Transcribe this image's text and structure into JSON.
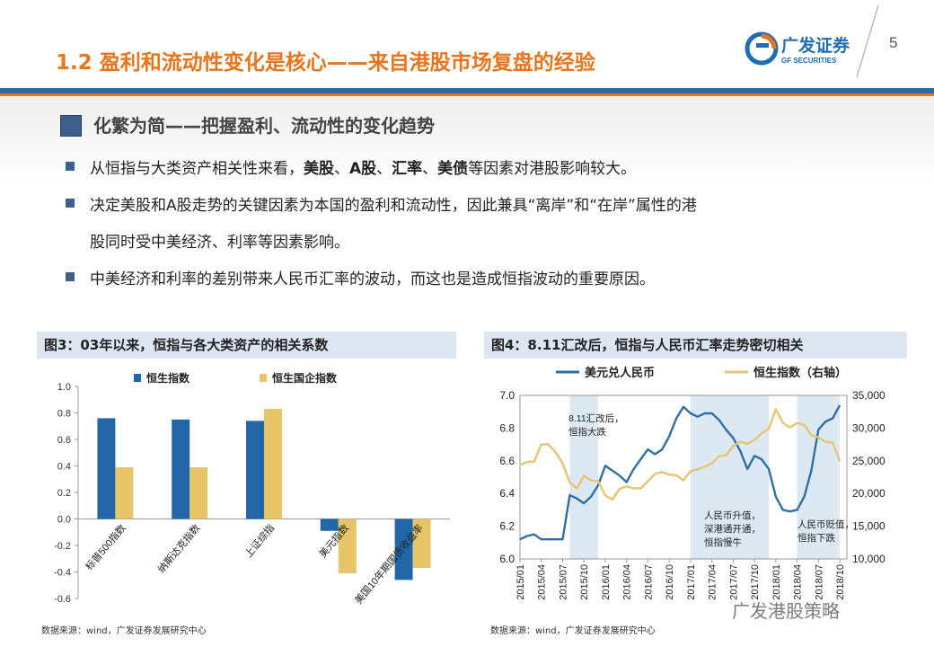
{
  "header": {
    "title": "1.2 盈利和流动性变化是核心——来自港股市场复盘的经验",
    "logo_cn": "广发证券",
    "logo_en": "GF SECURITIES",
    "page_number": "5",
    "colors": {
      "accent": "#e8741c",
      "blue": "#2e6da4"
    }
  },
  "section": {
    "title": "化繁为简——把握盈利、流动性的变化趋势"
  },
  "bullets": [
    {
      "parts": [
        {
          "t": "从恒指与大类资产相关性来看，",
          "b": false
        },
        {
          "t": "美股",
          "b": true
        },
        {
          "t": "、",
          "b": false
        },
        {
          "t": "A股",
          "b": true
        },
        {
          "t": "、",
          "b": false
        },
        {
          "t": "汇率",
          "b": true
        },
        {
          "t": "、",
          "b": false
        },
        {
          "t": "美债",
          "b": true
        },
        {
          "t": "等因素对港股影响较大。",
          "b": false
        }
      ]
    },
    {
      "line1": "决定美股和A股走势的关键因素为本国的盈利和流动性，因此兼具“离岸”和“在岸”属性的港",
      "line2": "股同时受中美经济、利率等因素影响。"
    },
    {
      "text": "中美经济和利率的差别带来人民币汇率的波动，而这也是造成恒指波动的重要原因。"
    }
  ],
  "fig3": {
    "title": "图3：03年以来，恒指与各大类资产的相关系数",
    "source": "数据来源：wind，广发证券发展研究中心"
  },
  "fig4": {
    "title": "图4：8.11汇改后，恒指与人民币汇率走势密切相关",
    "source": "数据来源：wind，广发证券发展研究中心",
    "annotations": [
      "8.11汇改后，",
      "恒指大跌",
      "人民币升值，",
      "深港通开通，",
      "恒指慢牛",
      "人民币贬值，",
      "恒指下跌"
    ]
  },
  "watermark": {
    "text": "广发港股策略"
  },
  "chart_data": [
    {
      "type": "bar",
      "title": "图3：03年以来，恒指与各大类资产的相关系数",
      "categories": [
        "标普500指数",
        "纳斯达克指数",
        "上证综指",
        "美元指数",
        "美国10年期国债收益率"
      ],
      "series": [
        {
          "name": "恒生指数",
          "color": "#2366a8",
          "values": [
            0.76,
            0.75,
            0.74,
            -0.09,
            -0.46
          ]
        },
        {
          "name": "恒生国企指数",
          "color": "#e8c468",
          "values": [
            0.39,
            0.39,
            0.83,
            -0.41,
            -0.37
          ]
        }
      ],
      "ylim": [
        -0.6,
        1.0
      ],
      "yticks": [
        "1.0",
        "0.8",
        "0.6",
        "0.4",
        "0.2",
        "0.0",
        "-0.2",
        "-0.4",
        "-0.6"
      ],
      "legend": "top",
      "grid": false
    },
    {
      "type": "line",
      "title": "图4：8.11汇改后，恒指与人民币汇率走势密切相关",
      "x_ticks": [
        "2015/01",
        "2015/04",
        "2015/07",
        "2015/10",
        "2016/01",
        "2016/04",
        "2016/07",
        "2016/10",
        "2017/01",
        "2017/04",
        "2017/07",
        "2017/10",
        "2018/01",
        "2018/04",
        "2018/07",
        "2018/10"
      ],
      "y_left": {
        "lim": [
          6.0,
          7.0
        ],
        "ticks": [
          "7.0",
          "6.8",
          "6.6",
          "6.4",
          "6.2",
          "6.0"
        ]
      },
      "y_right": {
        "lim": [
          10000,
          35000
        ],
        "ticks": [
          "35,000",
          "30,000",
          "25,000",
          "20,000",
          "15,000",
          "10,000"
        ]
      },
      "legend": "top",
      "series": [
        {
          "name": "美元兑人民币",
          "axis": "left",
          "color": "#2f6fa6",
          "points": [
            [
              "2015/01",
              6.12
            ],
            [
              "2015/02",
              6.14
            ],
            [
              "2015/03",
              6.15
            ],
            [
              "2015/04",
              6.12
            ],
            [
              "2015/05",
              6.12
            ],
            [
              "2015/06",
              6.12
            ],
            [
              "2015/07",
              6.12
            ],
            [
              "2015/08",
              6.39
            ],
            [
              "2015/09",
              6.37
            ],
            [
              "2015/10",
              6.34
            ],
            [
              "2015/11",
              6.38
            ],
            [
              "2015/12",
              6.45
            ],
            [
              "2016/01",
              6.57
            ],
            [
              "2016/02",
              6.54
            ],
            [
              "2016/03",
              6.51
            ],
            [
              "2016/04",
              6.47
            ],
            [
              "2016/05",
              6.55
            ],
            [
              "2016/06",
              6.61
            ],
            [
              "2016/07",
              6.67
            ],
            [
              "2016/08",
              6.64
            ],
            [
              "2016/09",
              6.67
            ],
            [
              "2016/10",
              6.75
            ],
            [
              "2016/11",
              6.86
            ],
            [
              "2016/12",
              6.93
            ],
            [
              "2017/01",
              6.89
            ],
            [
              "2017/02",
              6.87
            ],
            [
              "2017/03",
              6.89
            ],
            [
              "2017/04",
              6.89
            ],
            [
              "2017/05",
              6.85
            ],
            [
              "2017/06",
              6.79
            ],
            [
              "2017/07",
              6.74
            ],
            [
              "2017/08",
              6.66
            ],
            [
              "2017/09",
              6.55
            ],
            [
              "2017/10",
              6.63
            ],
            [
              "2017/11",
              6.61
            ],
            [
              "2017/12",
              6.55
            ],
            [
              "2018/01",
              6.38
            ],
            [
              "2018/02",
              6.3
            ],
            [
              "2018/03",
              6.29
            ],
            [
              "2018/04",
              6.3
            ],
            [
              "2018/05",
              6.38
            ],
            [
              "2018/06",
              6.54
            ],
            [
              "2018/07",
              6.79
            ],
            [
              "2018/08",
              6.84
            ],
            [
              "2018/09",
              6.86
            ],
            [
              "2018/10",
              6.94
            ]
          ]
        },
        {
          "name": "恒生指数（右轴）",
          "axis": "right",
          "color": "#e6c472",
          "points": [
            [
              "2015/01",
              24400
            ],
            [
              "2015/02",
              24800
            ],
            [
              "2015/03",
              24900
            ],
            [
              "2015/04",
              27500
            ],
            [
              "2015/05",
              27500
            ],
            [
              "2015/06",
              26300
            ],
            [
              "2015/07",
              24600
            ],
            [
              "2015/08",
              21700
            ],
            [
              "2015/09",
              20800
            ],
            [
              "2015/10",
              22700
            ],
            [
              "2015/11",
              22000
            ],
            [
              "2015/12",
              21900
            ],
            [
              "2016/01",
              19700
            ],
            [
              "2016/02",
              19100
            ],
            [
              "2016/03",
              20700
            ],
            [
              "2016/04",
              21100
            ],
            [
              "2016/05",
              20800
            ],
            [
              "2016/06",
              20800
            ],
            [
              "2016/07",
              21900
            ],
            [
              "2016/08",
              23000
            ],
            [
              "2016/09",
              23300
            ],
            [
              "2016/10",
              22900
            ],
            [
              "2016/11",
              22800
            ],
            [
              "2016/12",
              22000
            ],
            [
              "2017/01",
              23400
            ],
            [
              "2017/02",
              23700
            ],
            [
              "2017/03",
              24100
            ],
            [
              "2017/04",
              24600
            ],
            [
              "2017/05",
              25700
            ],
            [
              "2017/06",
              25800
            ],
            [
              "2017/07",
              27300
            ],
            [
              "2017/08",
              27900
            ],
            [
              "2017/09",
              27600
            ],
            [
              "2017/10",
              28200
            ],
            [
              "2017/11",
              29200
            ],
            [
              "2017/12",
              29900
            ],
            [
              "2018/01",
              32900
            ],
            [
              "2018/02",
              30800
            ],
            [
              "2018/03",
              30100
            ],
            [
              "2018/04",
              30800
            ],
            [
              "2018/05",
              30500
            ],
            [
              "2018/06",
              28900
            ],
            [
              "2018/07",
              28600
            ],
            [
              "2018/08",
              27900
            ],
            [
              "2018/09",
              27800
            ],
            [
              "2018/10",
              24900
            ]
          ]
        }
      ],
      "shaded_periods": [
        [
          "2015/08",
          "2015/12"
        ],
        [
          "2017/01",
          "2017/12"
        ],
        [
          "2018/04",
          "2018/10"
        ]
      ]
    }
  ]
}
